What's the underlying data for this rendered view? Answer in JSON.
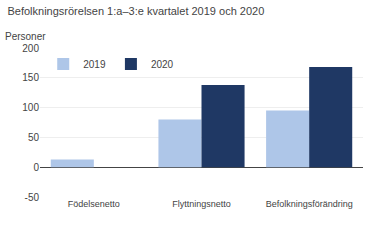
{
  "chart_data": {
    "type": "bar",
    "title": "Befolkningsrörelsen 1:a–3:e kvartalet 2019 och 2020",
    "ylabel": "Personer",
    "categories": [
      "Födelsenetto",
      "Flyttningsnetto",
      "Befolkningsförändring"
    ],
    "series": [
      {
        "name": "2019",
        "color": "#aec6e8",
        "values": [
          13,
          80,
          95
        ]
      },
      {
        "name": "2020",
        "color": "#1f3864",
        "values": [
          0,
          138,
          168
        ]
      }
    ],
    "ylim": [
      -50,
      200
    ],
    "yticks": [
      -50,
      0,
      50,
      100,
      150,
      200
    ],
    "grid": true,
    "legend": "upper left"
  }
}
